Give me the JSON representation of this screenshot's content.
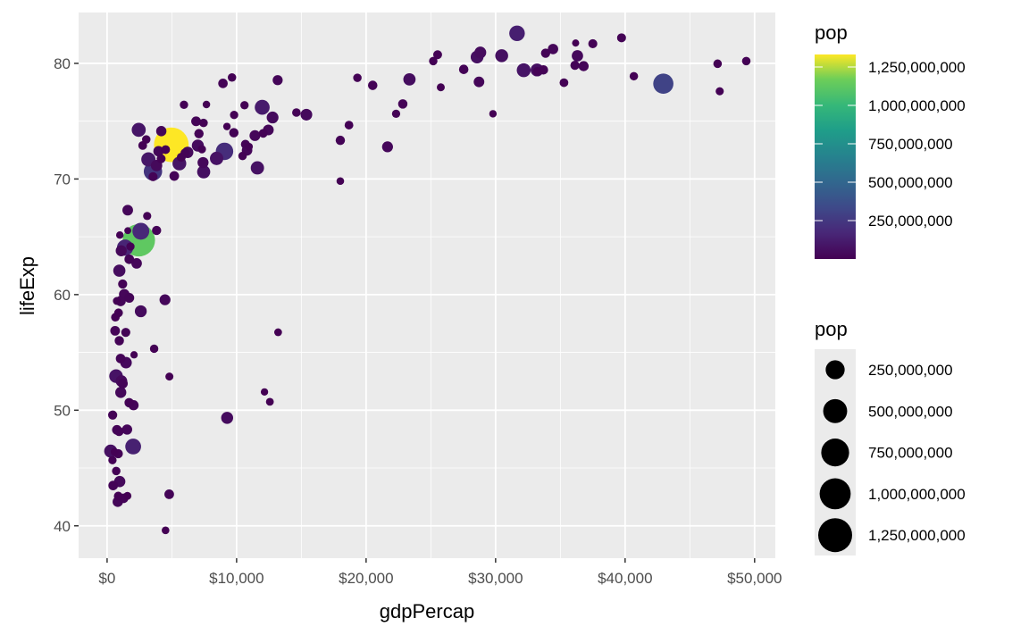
{
  "chart_data": {
    "type": "scatter",
    "xlabel": "gdpPercap",
    "ylabel": "lifeExp",
    "xlim": [
      -2200,
      51600
    ],
    "ylim": [
      37.2,
      84.4
    ],
    "x_ticks": [
      0,
      10000,
      20000,
      30000,
      40000,
      50000
    ],
    "x_tick_labels": [
      "$0",
      "$10,000",
      "$20,000",
      "$30,000",
      "$40,000",
      "$50,000"
    ],
    "y_ticks": [
      40,
      50,
      60,
      70,
      80
    ],
    "y_tick_labels": [
      "40",
      "50",
      "60",
      "70",
      "80"
    ],
    "grid": true,
    "color_legend": {
      "title": "pop",
      "position": "right",
      "breaks": [
        1250000000,
        1000000000,
        750000000,
        500000000,
        250000000
      ],
      "labels": [
        "1,250,000,000",
        "1,000,000,000",
        "750,000,000",
        "500,000,000",
        "250,000,000"
      ],
      "colormap": "viridis"
    },
    "size_legend": {
      "title": "pop",
      "position": "right",
      "breaks": [
        250000000,
        500000000,
        750000000,
        1000000000,
        1250000000
      ],
      "labels": [
        "250,000,000",
        "500,000,000",
        "750,000,000",
        "1,000,000,000",
        "1,250,000,000"
      ]
    },
    "points_fields": [
      "gdpPercap",
      "lifeExp",
      "pop_millions"
    ],
    "points": [
      [
        975,
        43.83,
        31.9
      ],
      [
        5937,
        76.42,
        3.6
      ],
      [
        6223,
        72.3,
        33.3
      ],
      [
        4797,
        42.73,
        12.4
      ],
      [
        12779,
        75.32,
        40.3
      ],
      [
        34435,
        81.24,
        20.4
      ],
      [
        36126,
        79.83,
        8.2
      ],
      [
        29796,
        75.64,
        0.7
      ],
      [
        1391,
        64.06,
        150.4
      ],
      [
        33693,
        79.44,
        10.4
      ],
      [
        1441,
        56.73,
        8.1
      ],
      [
        3822,
        65.55,
        9.1
      ],
      [
        7446,
        74.85,
        4.6
      ],
      [
        12570,
        50.73,
        1.6
      ],
      [
        9066,
        72.39,
        190.0
      ],
      [
        10681,
        73.0,
        7.3
      ],
      [
        1217,
        52.3,
        14.3
      ],
      [
        430,
        49.58,
        8.4
      ],
      [
        1714,
        59.72,
        14.1
      ],
      [
        2042,
        50.43,
        17.7
      ],
      [
        36319,
        80.65,
        33.4
      ],
      [
        706,
        44.74,
        4.4
      ],
      [
        1704,
        50.65,
        10.2
      ],
      [
        13172,
        78.55,
        16.3
      ],
      [
        4959,
        72.96,
        1318.7
      ],
      [
        7007,
        72.89,
        44.2
      ],
      [
        986,
        65.15,
        0.7
      ],
      [
        278,
        46.46,
        64.6
      ],
      [
        3633,
        55.32,
        3.8
      ],
      [
        9645,
        78.78,
        4.1
      ],
      [
        1545,
        48.33,
        18.0
      ],
      [
        14619,
        75.75,
        4.5
      ],
      [
        8948,
        78.27,
        11.4
      ],
      [
        22833,
        76.49,
        10.2
      ],
      [
        35278,
        78.33,
        5.5
      ],
      [
        2082,
        54.79,
        0.5
      ],
      [
        6025,
        72.24,
        9.3
      ],
      [
        6873,
        74.99,
        13.8
      ],
      [
        5581,
        71.34,
        80.3
      ],
      [
        5728,
        71.88,
        6.9
      ],
      [
        12154,
        51.58,
        0.55
      ],
      [
        641,
        58.04,
        4.9
      ],
      [
        691,
        52.95,
        76.5
      ],
      [
        33207,
        79.31,
        5.2
      ],
      [
        30470,
        80.66,
        61.1
      ],
      [
        13206,
        56.74,
        1.45
      ],
      [
        753,
        59.45,
        1.7
      ],
      [
        32170,
        79.41,
        82.4
      ],
      [
        1328,
        60.02,
        22.9
      ],
      [
        27538,
        79.48,
        10.7
      ],
      [
        5186,
        70.26,
        12.6
      ],
      [
        943,
        56.01,
        9.9
      ],
      [
        579,
        46.39,
        1.5
      ],
      [
        1202,
        60.92,
        8.5
      ],
      [
        3548,
        70.2,
        7.5
      ],
      [
        39725,
        82.21,
        7.0
      ],
      [
        18009,
        73.34,
        10.0
      ],
      [
        36181,
        81.76,
        0.3
      ],
      [
        2452,
        64.7,
        1110.4
      ],
      [
        3541,
        70.65,
        223.5
      ],
      [
        11606,
        70.96,
        69.5
      ],
      [
        4471,
        59.55,
        27.5
      ],
      [
        40676,
        78.89,
        4.1
      ],
      [
        25523,
        80.75,
        6.4
      ],
      [
        28570,
        80.55,
        58.1
      ],
      [
        7321,
        72.57,
        2.8
      ],
      [
        31656,
        82.6,
        127.5
      ],
      [
        4519,
        72.54,
        6.1
      ],
      [
        1463,
        54.11,
        35.6
      ],
      [
        1593,
        67.3,
        23.3
      ],
      [
        23348,
        78.62,
        49.0
      ],
      [
        47307,
        77.59,
        2.5
      ],
      [
        10461,
        71.99,
        3.9
      ],
      [
        1569,
        42.59,
        2.0
      ],
      [
        415,
        45.68,
        3.2
      ],
      [
        12057,
        73.95,
        6.0
      ],
      [
        1045,
        59.44,
        19.2
      ],
      [
        759,
        48.3,
        13.3
      ],
      [
        12452,
        74.24,
        24.8
      ],
      [
        1043,
        54.47,
        12.0
      ],
      [
        1803,
        64.16,
        3.3
      ],
      [
        10957,
        72.8,
        1.25
      ],
      [
        11978,
        76.2,
        108.7
      ],
      [
        3096,
        66.8,
        2.9
      ],
      [
        9254,
        74.54,
        0.68
      ],
      [
        3820,
        71.16,
        33.8
      ],
      [
        824,
        42.08,
        20.0
      ],
      [
        944,
        62.07,
        47.8
      ],
      [
        4811,
        52.91,
        2.1
      ],
      [
        1091,
        63.79,
        28.9
      ],
      [
        36798,
        79.76,
        16.6
      ],
      [
        25185,
        80.2,
        4.1
      ],
      [
        2749,
        72.9,
        5.7
      ],
      [
        620,
        56.87,
        12.9
      ],
      [
        2014,
        46.86,
        135.0
      ],
      [
        49357,
        80.2,
        4.6
      ],
      [
        22316,
        75.64,
        3.2
      ],
      [
        2606,
        65.48,
        169.3
      ],
      [
        9809,
        75.54,
        3.2
      ],
      [
        4173,
        71.75,
        6.7
      ],
      [
        7409,
        71.42,
        28.7
      ],
      [
        3190,
        71.69,
        91.1
      ],
      [
        15390,
        75.56,
        38.5
      ],
      [
        20510,
        78.1,
        10.6
      ],
      [
        19329,
        78.75,
        3.9
      ],
      [
        7670,
        76.44,
        0.8
      ],
      [
        10808,
        72.48,
        22.3
      ],
      [
        863,
        46.24,
        8.9
      ],
      [
        1598,
        65.53,
        0.2
      ],
      [
        21655,
        72.78,
        27.6
      ],
      [
        1712,
        63.06,
        12.3
      ],
      [
        9787,
        74.0,
        10.2
      ],
      [
        863,
        42.57,
        6.1
      ],
      [
        47143,
        79.97,
        4.6
      ],
      [
        18678,
        74.66,
        5.4
      ],
      [
        25768,
        77.93,
        2.0
      ],
      [
        926,
        48.16,
        9.1
      ],
      [
        9270,
        49.34,
        44.0
      ],
      [
        28821,
        80.94,
        40.4
      ],
      [
        3970,
        72.4,
        20.4
      ],
      [
        2602,
        58.56,
        42.3
      ],
      [
        4513,
        39.61,
        1.1
      ],
      [
        33860,
        80.88,
        9.0
      ],
      [
        37506,
        81.7,
        7.55
      ],
      [
        4185,
        74.14,
        19.3
      ],
      [
        28718,
        78.4,
        23.2
      ],
      [
        1107,
        52.52,
        38.1
      ],
      [
        7458,
        70.62,
        65.1
      ],
      [
        883,
        58.42,
        5.7
      ],
      [
        18009,
        69.82,
        1.06
      ],
      [
        7093,
        73.92,
        10.3
      ],
      [
        8458,
        71.78,
        71.2
      ],
      [
        1056,
        51.54,
        29.2
      ],
      [
        33203,
        79.43,
        60.8
      ],
      [
        42952,
        78.24,
        301.1
      ],
      [
        10611,
        76.38,
        3.4
      ],
      [
        11416,
        73.75,
        26.1
      ],
      [
        2442,
        74.25,
        85.3
      ],
      [
        3025,
        73.42,
        4.0
      ],
      [
        2281,
        62.7,
        22.2
      ],
      [
        1271,
        42.38,
        11.7
      ],
      [
        470,
        43.49,
        12.3
      ]
    ]
  }
}
